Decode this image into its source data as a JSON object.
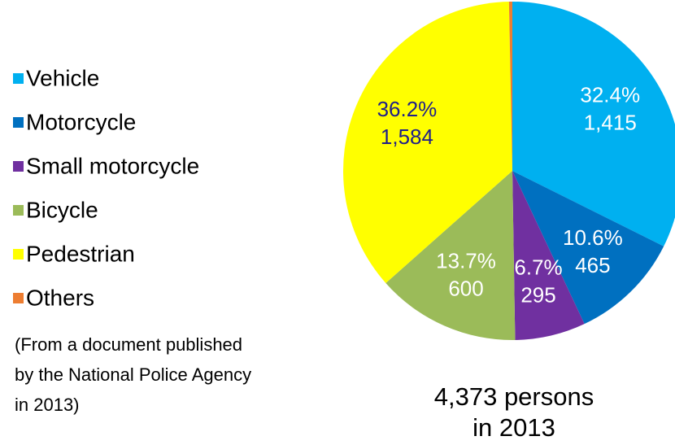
{
  "chart_data": {
    "type": "pie",
    "categories": [
      "Vehicle",
      "Motorcycle",
      "Small motorcycle",
      "Bicycle",
      "Pedestrian",
      "Others"
    ],
    "values": [
      1415,
      465,
      295,
      600,
      1584,
      14
    ],
    "value_labels": [
      "1,415",
      "465",
      "295",
      "600",
      "1,584",
      null
    ],
    "percent_labels": [
      "32.4%",
      "10.6%",
      "6.7%",
      "13.7%",
      "36.2%",
      null
    ],
    "colors": [
      "#00b0f0",
      "#0070c0",
      "#7030a0",
      "#9bbb59",
      "#ffff00",
      "#ed7d31"
    ],
    "label_colors": [
      "#ffffff",
      "#ffffff",
      "#ffffff",
      "#ffffff",
      "#1f1f8a",
      "#ffffff"
    ],
    "legend": "left",
    "note_lines": [
      "(From a document published",
      "by the National Police Agency",
      "in 2013)"
    ],
    "caption_lines": [
      "4,373 persons",
      "in 2013"
    ]
  }
}
